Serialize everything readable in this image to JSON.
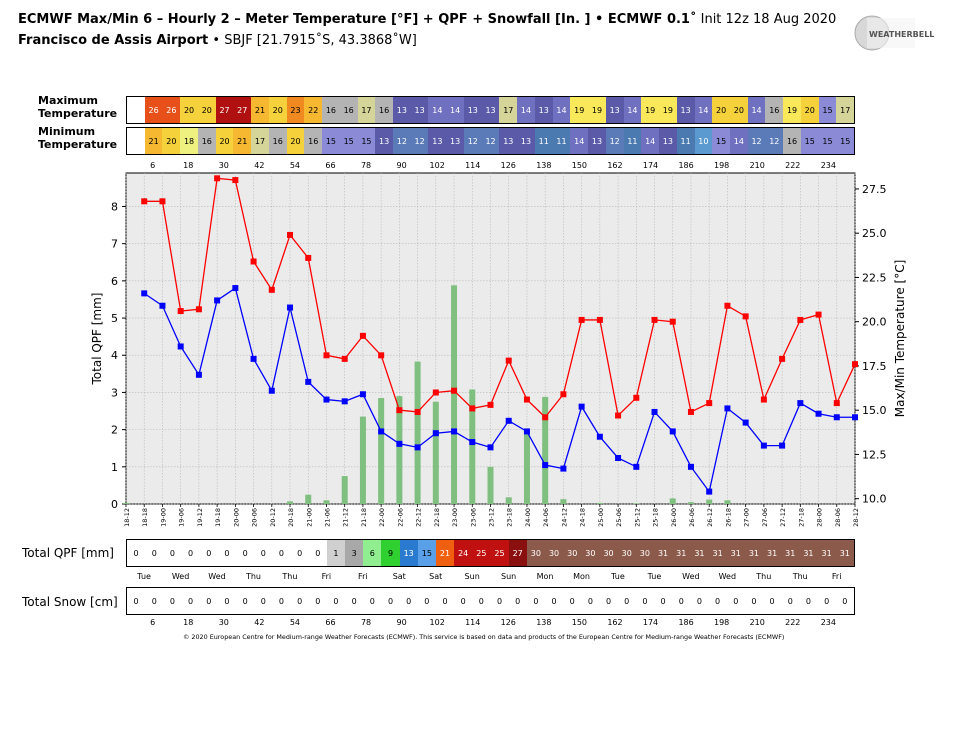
{
  "header": {
    "title": "ECMWF Max/Min 6 – Hourly 2 – Meter Temperature [°F] + QPF + Snowfall [In. ] • ECMWF 0.1˚",
    "init": "Init 12z 18 Aug 2020",
    "location_bold": "Francisco de Assis Airport",
    "location_rest": "• SBJF [21.7915˚S, 43.3868˚W]",
    "logo_text": "WEATHERBELL"
  },
  "labels": {
    "max_temp": [
      "Maximum",
      "Temperature"
    ],
    "min_temp": [
      "Minimum",
      "Temperature"
    ],
    "total_qpf": "Total QPF [mm]",
    "total_snow": "Total Snow [cm]",
    "credit": "© 2020 European Centre for Medium-range Weather Forecasts (ECMWF). This service is based on data and products of the European Centre for Medium-range Weather Forecasts (ECMWF)"
  },
  "max_temps": [
    "",
    "26",
    "26",
    "20",
    "20",
    "27",
    "27",
    "21",
    "20",
    "23",
    "22",
    "16",
    "16",
    "17",
    "16",
    "13",
    "13",
    "14",
    "14",
    "13",
    "13",
    "17",
    "14",
    "13",
    "14",
    "19",
    "19",
    "13",
    "14",
    "19",
    "19",
    "13",
    "14",
    "20",
    "20",
    "14",
    "16",
    "19",
    "20",
    "15",
    "17"
  ],
  "min_temps": [
    "",
    "21",
    "20",
    "18",
    "16",
    "20",
    "21",
    "17",
    "16",
    "20",
    "16",
    "15",
    "15",
    "15",
    "13",
    "12",
    "12",
    "13",
    "13",
    "12",
    "12",
    "13",
    "13",
    "11",
    "11",
    "14",
    "13",
    "12",
    "11",
    "14",
    "13",
    "11",
    "10",
    "15",
    "14",
    "12",
    "12",
    "16",
    "15",
    "15",
    "15"
  ],
  "hour_ticks": [
    "6",
    "18",
    "30",
    "42",
    "54",
    "66",
    "78",
    "90",
    "102",
    "114",
    "126",
    "138",
    "150",
    "162",
    "174",
    "186",
    "198",
    "210",
    "222",
    "234"
  ],
  "qpf_totals": [
    "0",
    "0",
    "0",
    "0",
    "0",
    "0",
    "0",
    "0",
    "0",
    "0",
    "0",
    "1",
    "3",
    "6",
    "9",
    "13",
    "15",
    "21",
    "24",
    "25",
    "25",
    "27",
    "30",
    "30",
    "30",
    "30",
    "30",
    "30",
    "30",
    "31",
    "31",
    "31",
    "31",
    "31",
    "31",
    "31",
    "31",
    "31",
    "31",
    "31"
  ],
  "snow_totals": [
    "0",
    "0",
    "0",
    "0",
    "0",
    "0",
    "0",
    "0",
    "0",
    "0",
    "0",
    "0",
    "0",
    "0",
    "0",
    "0",
    "0",
    "0",
    "0",
    "0",
    "0",
    "0",
    "0",
    "0",
    "0",
    "0",
    "0",
    "0",
    "0",
    "0",
    "0",
    "0",
    "0",
    "0",
    "0",
    "0",
    "0",
    "0",
    "0",
    "0"
  ],
  "day_labels": [
    "Tue",
    "Wed",
    "Wed",
    "Thu",
    "Thu",
    "Fri",
    "Fri",
    "Sat",
    "Sat",
    "Sun",
    "Sun",
    "Mon",
    "Mon",
    "Tue",
    "Tue",
    "Wed",
    "Wed",
    "Thu",
    "Thu",
    "Fri"
  ],
  "colors": {
    "max_line": "#ff0000",
    "min_line": "#0000ff",
    "qpf_bar": "#7fbf7f",
    "plot_bg": "#ebebeb"
  },
  "chart_data": {
    "type": "line",
    "x": [
      "18-12",
      "18-18",
      "19-00",
      "19-06",
      "19-12",
      "19-18",
      "20-00",
      "20-06",
      "20-12",
      "20-18",
      "21-00",
      "21-06",
      "21-12",
      "21-18",
      "22-00",
      "22-06",
      "22-12",
      "22-18",
      "23-00",
      "23-06",
      "23-12",
      "23-18",
      "24-00",
      "24-06",
      "24-12",
      "24-18",
      "25-00",
      "25-06",
      "25-12",
      "25-18",
      "26-00",
      "26-06",
      "26-12",
      "26-18",
      "27-00",
      "27-06",
      "27-12",
      "27-18",
      "28-00",
      "28-06",
      "28-12"
    ],
    "xlabel": "",
    "ylabel": "Total QPF  [mm]",
    "y2label": "Max/Min Temperature  [°C]",
    "ylim": [
      0,
      8.9
    ],
    "y2lim": [
      9.7,
      28.4
    ],
    "yticks": [
      0,
      1,
      2,
      3,
      4,
      5,
      6,
      7,
      8
    ],
    "y2ticks": [
      10.0,
      12.5,
      15.0,
      17.5,
      20.0,
      22.5,
      25.0,
      27.5
    ],
    "grid": true,
    "series": [
      {
        "axis": "y2",
        "values": [
          null,
          26.8,
          26.8,
          20.6,
          20.7,
          28.1,
          28.0,
          23.4,
          21.8,
          24.9,
          23.6,
          18.1,
          17.9,
          19.2,
          18.1,
          15.0,
          14.9,
          16.0,
          16.1,
          15.1,
          15.3,
          17.8,
          15.6,
          14.6,
          15.9,
          20.1,
          20.1,
          14.7,
          15.7,
          20.1,
          20.0,
          14.9,
          15.4,
          20.9,
          20.3,
          15.6,
          17.9,
          20.1,
          20.4,
          15.4,
          17.6
        ]
      },
      {
        "axis": "y2",
        "values": [
          null,
          21.6,
          20.9,
          18.6,
          17.0,
          21.2,
          21.9,
          17.9,
          16.1,
          20.8,
          16.6,
          15.6,
          15.5,
          15.9,
          13.8,
          13.1,
          12.9,
          13.7,
          13.8,
          13.2,
          12.9,
          14.4,
          13.8,
          11.9,
          11.7,
          15.2,
          13.5,
          12.3,
          11.8,
          14.9,
          13.8,
          11.8,
          10.4,
          15.1,
          14.3,
          13.0,
          13.0,
          15.4,
          14.8,
          14.6,
          14.6
        ]
      },
      {
        "axis": "y",
        "values": [
          0.03,
          0.0,
          0.0,
          0.0,
          0.0,
          0.0,
          0.0,
          0.0,
          0.0,
          0.07,
          0.25,
          0.1,
          0.75,
          2.35,
          2.85,
          2.9,
          3.83,
          2.75,
          5.88,
          3.08,
          1.0,
          0.18,
          1.9,
          2.88,
          0.13,
          0.0,
          0.03,
          0.0,
          0.02,
          0.0,
          0.15,
          0.05,
          0.12,
          0.1,
          0.0,
          0.0,
          0.0,
          0.0,
          0.0,
          0.0,
          0.0
        ]
      }
    ]
  }
}
